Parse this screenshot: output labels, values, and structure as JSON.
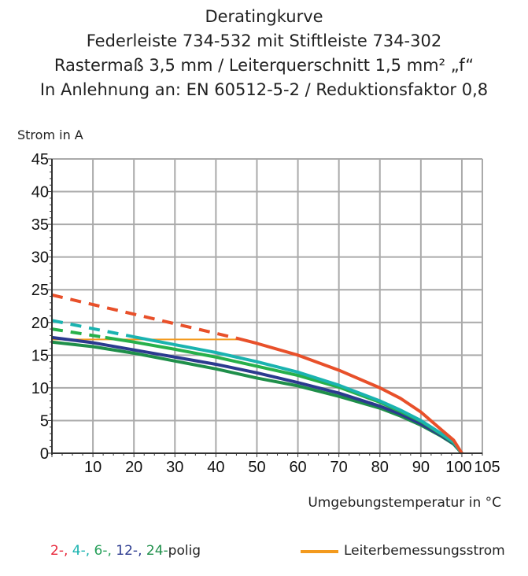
{
  "chart_data": {
    "type": "line",
    "title": [
      "Deratingkurve",
      "Federleiste 734-532 mit Stiftleiste 734-302",
      "Rastermaß 3,5 mm / Leiterquerschnitt 1,5 mm² „f“",
      "In Anlehnung an: EN 60512-5-2 / Reduktionsfaktor 0,8"
    ],
    "ylabel": "Strom in A",
    "xlabel": "Umgebungstemperatur in °C",
    "xlim": [
      0,
      105
    ],
    "ylim": [
      0,
      45
    ],
    "xticks": [
      10,
      20,
      30,
      40,
      50,
      60,
      70,
      80,
      90,
      100,
      105
    ],
    "yticks": [
      0,
      5,
      10,
      15,
      20,
      25,
      30,
      35,
      40,
      45
    ],
    "grid": true,
    "series": [
      {
        "key": "2",
        "color": "#e8502a",
        "dashed": {
          "x": [
            0,
            45
          ],
          "y": [
            24.2,
            17.6
          ]
        },
        "x": [
          45,
          50,
          60,
          70,
          80,
          85,
          90,
          95,
          98,
          100
        ],
        "y": [
          17.6,
          16.8,
          15.0,
          12.7,
          10.0,
          8.4,
          6.3,
          3.6,
          2.0,
          0
        ]
      },
      {
        "key": "4",
        "color": "#1ab3b0",
        "dashed": {
          "x": [
            0,
            20
          ],
          "y": [
            20.3,
            17.8
          ]
        },
        "x": [
          20,
          30,
          40,
          50,
          60,
          70,
          80,
          85,
          90,
          95,
          98,
          100
        ],
        "y": [
          17.8,
          16.6,
          15.4,
          14.0,
          12.4,
          10.4,
          8.0,
          6.6,
          5.0,
          3.0,
          1.7,
          0
        ]
      },
      {
        "key": "6",
        "color": "#27b04a",
        "dashed": {
          "x": [
            0,
            13
          ],
          "y": [
            19.0,
            17.7
          ]
        },
        "x": [
          13,
          20,
          30,
          40,
          50,
          60,
          70,
          80,
          85,
          90,
          95,
          98,
          100
        ],
        "y": [
          17.7,
          17.0,
          15.9,
          14.7,
          13.3,
          11.9,
          10.1,
          7.8,
          6.4,
          4.9,
          2.9,
          1.6,
          0
        ]
      },
      {
        "key": "12",
        "color": "#2b3a8f",
        "x": [
          0,
          10,
          20,
          30,
          40,
          50,
          60,
          70,
          80,
          85,
          90,
          95,
          98,
          100
        ],
        "y": [
          17.7,
          16.9,
          15.8,
          14.7,
          13.6,
          12.3,
          10.8,
          9.2,
          7.2,
          6.0,
          4.5,
          2.7,
          1.5,
          0
        ]
      },
      {
        "key": "24",
        "color": "#1f8f4a",
        "x": [
          0,
          10,
          20,
          30,
          40,
          50,
          60,
          70,
          80,
          85,
          90,
          95,
          98,
          100
        ],
        "y": [
          17.0,
          16.3,
          15.3,
          14.1,
          12.9,
          11.5,
          10.3,
          8.7,
          6.9,
          5.7,
          4.3,
          2.6,
          1.4,
          0
        ]
      }
    ],
    "reference_line": {
      "name": "Leiterbemessungsstrom",
      "color": "#f39a1e",
      "x": [
        0,
        46
      ],
      "y": [
        17.4,
        17.4
      ]
    },
    "legend": {
      "placement": "bottom",
      "parts": [
        {
          "text": "2-",
          "color": "#e8263a"
        },
        {
          "text": ", ",
          "color": "#e8263a"
        },
        {
          "text": "4-",
          "color": "#1ab3b0"
        },
        {
          "text": ", ",
          "color": "#1ab3b0"
        },
        {
          "text": "6-",
          "color": "#27a05a"
        },
        {
          "text": ", ",
          "color": "#27a05a"
        },
        {
          "text": "12-",
          "color": "#2b3a8f"
        },
        {
          "text": ", ",
          "color": "#2b3a8f"
        },
        {
          "text": "24-",
          "color": "#1f8f4a"
        },
        {
          "text": "polig",
          "color": "#222222"
        }
      ],
      "reference_label": "Leiterbemessungsstrom"
    }
  }
}
